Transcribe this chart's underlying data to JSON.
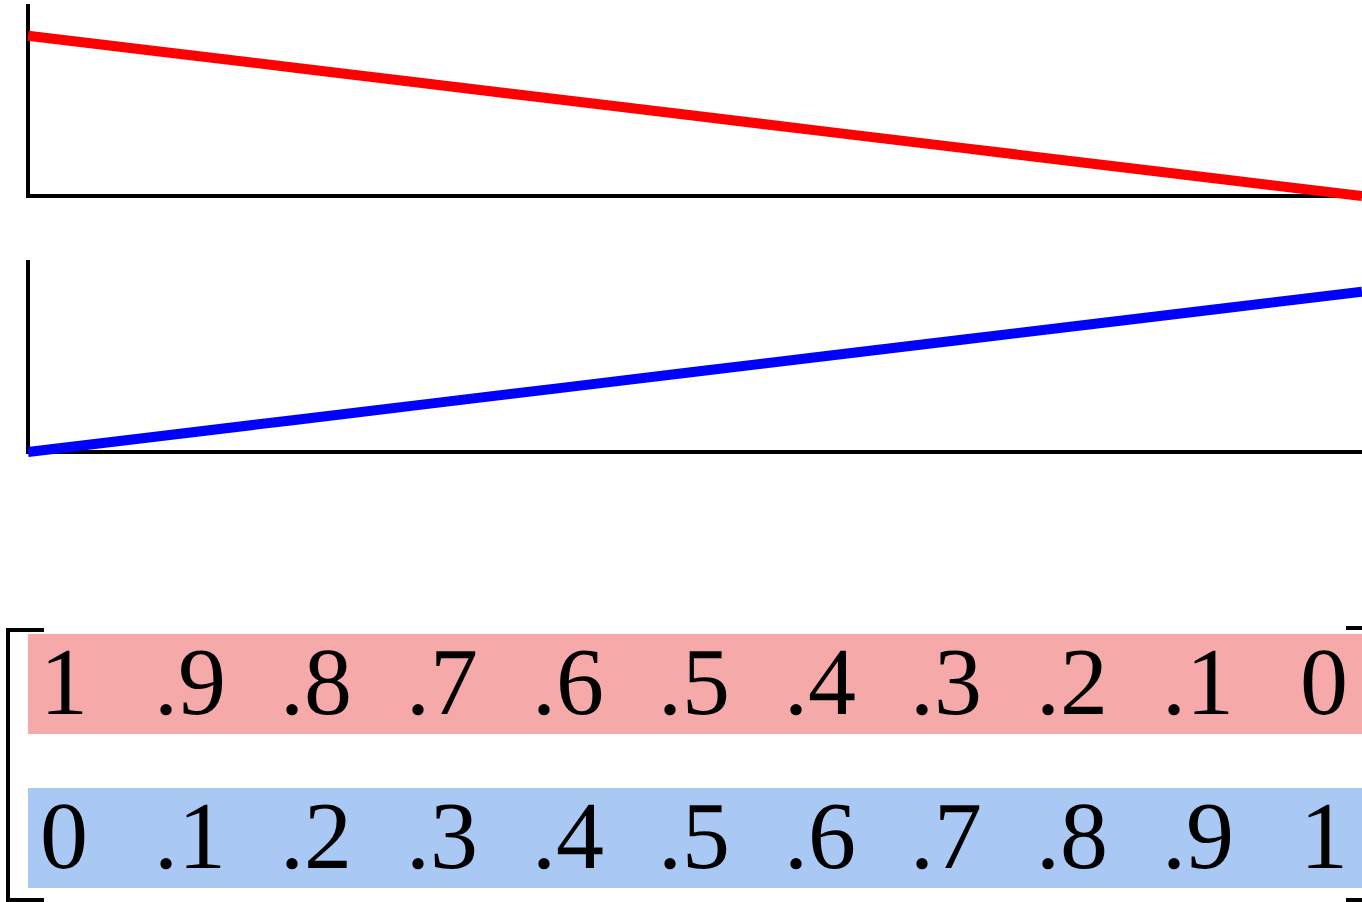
{
  "chart_data": [
    {
      "type": "line",
      "categories": [
        null,
        null,
        null,
        null,
        null,
        null,
        null,
        null,
        null,
        null,
        null
      ],
      "values": [
        1,
        0.9,
        0.8,
        0.7,
        0.6,
        0.5,
        0.4,
        0.3,
        0.2,
        0.1,
        0
      ],
      "color": "#ff0000",
      "value_labels": [
        "1",
        ".9",
        ".8",
        ".7",
        ".6",
        ".5",
        ".4",
        ".3",
        ".2",
        ".1",
        "0"
      ],
      "tick_labels": false
    },
    {
      "type": "line",
      "categories": [
        null,
        null,
        null,
        null,
        null,
        null,
        null,
        null,
        null,
        null,
        null
      ],
      "values": [
        0,
        0.1,
        0.2,
        0.3,
        0.4,
        0.5,
        0.6,
        0.7,
        0.8,
        0.9,
        1
      ],
      "color": "#0000ff",
      "value_labels": [
        "0",
        ".1",
        ".2",
        ".3",
        ".4",
        ".5",
        ".6",
        ".7",
        ".8",
        ".9",
        "1"
      ],
      "tick_labels": false
    }
  ]
}
